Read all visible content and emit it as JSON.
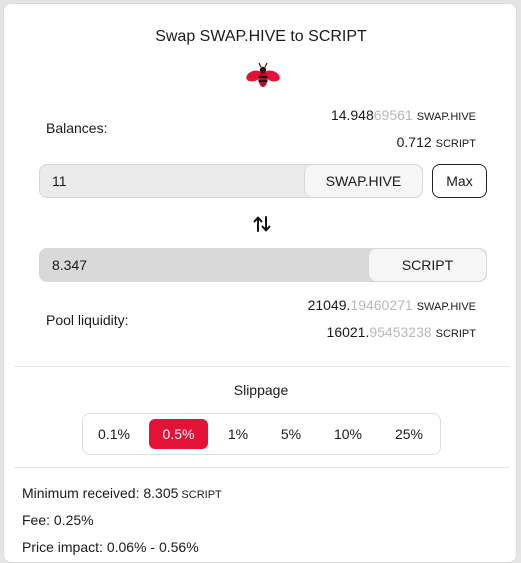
{
  "title": "Swap SWAP.HIVE to SCRIPT",
  "colors": {
    "accent": "#e31337"
  },
  "balances": {
    "label": "Balances:",
    "from_main": "14.948",
    "from_dim": "69561",
    "from_unit": "SWAP.HIVE",
    "to_main": "0.712",
    "to_dim": "",
    "to_unit": "SCRIPT"
  },
  "from_input": {
    "value": "11",
    "token": "SWAP.HIVE",
    "max_label": "Max"
  },
  "swap_icon": "swap-vertical-arrows-icon",
  "to_input": {
    "value": "8.347",
    "token": "SCRIPT"
  },
  "pool": {
    "label": "Pool liquidity:",
    "a_main": "21049.",
    "a_dim": "19460271",
    "a_unit": "SWAP.HIVE",
    "b_main": "16021.",
    "b_dim": "95453238",
    "b_unit": "SCRIPT"
  },
  "slippage": {
    "title": "Slippage",
    "options": [
      "0.1%",
      "0.5%",
      "1%",
      "5%",
      "10%",
      "25%"
    ],
    "selected": "0.5%"
  },
  "info": {
    "min_received_label": "Minimum received:",
    "min_received_value": "8.305",
    "min_received_unit": "SCRIPT",
    "fee_label": "Fee:",
    "fee_value": "0.25%",
    "impact_label": "Price impact:",
    "impact_value": "0.06% - 0.56%"
  }
}
